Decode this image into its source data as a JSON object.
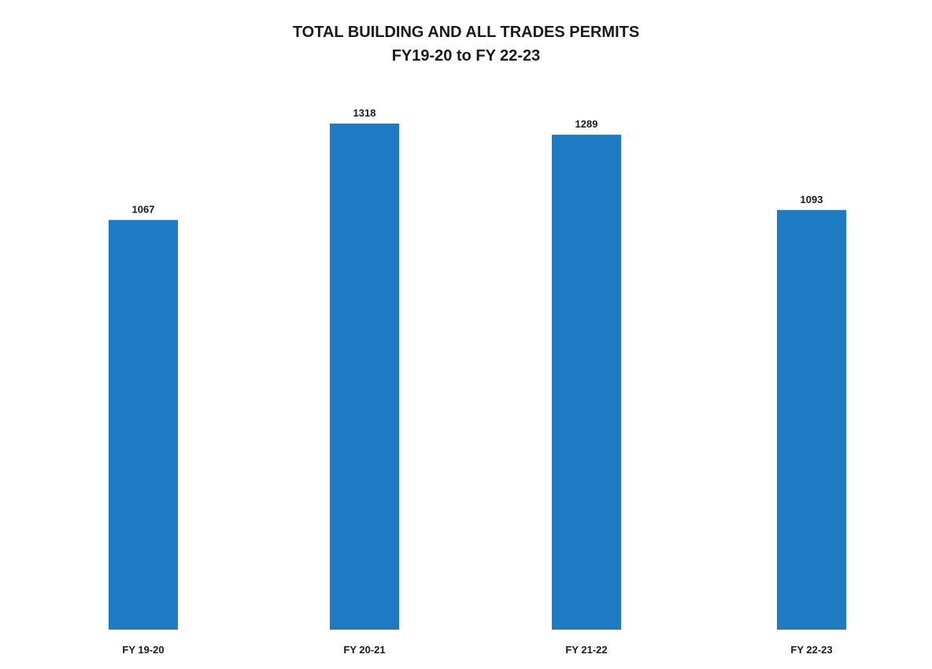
{
  "chart_data": {
    "type": "bar",
    "title": "TOTAL BUILDING AND ALL TRADES PERMITS",
    "subtitle": "FY19-20 to FY 22-23",
    "categories": [
      "FY 19-20",
      "FY 20-21",
      "FY 21-22",
      "FY 22-23"
    ],
    "values": [
      1067,
      1318,
      1289,
      1093
    ],
    "xlabel": "",
    "ylabel": "",
    "ylim": [
      0,
      1318
    ],
    "grid": false,
    "legend": "none",
    "bar_color": "#1E7BC3",
    "text_color": "#1a1a1a"
  }
}
